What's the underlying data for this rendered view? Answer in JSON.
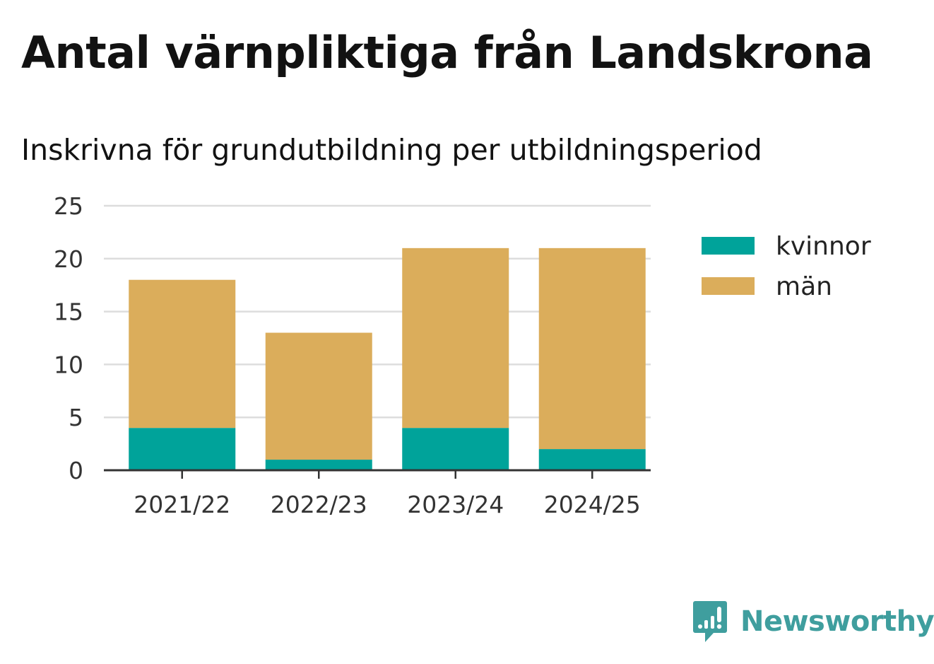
{
  "header": {
    "title": "Antal värnpliktiga från Landskrona",
    "subtitle": "Inskrivna för grundutbildning per utbildningsperiod"
  },
  "branding": {
    "logo_text": "Newsworthy"
  },
  "colors": {
    "kvinnor": "#00a39a",
    "man": "#dbad5b",
    "grid": "#dddddd",
    "axis": "#333333",
    "logo": "#3f9e9e"
  },
  "chart_data": {
    "type": "bar",
    "stacked": true,
    "categories": [
      "2021/22",
      "2022/23",
      "2023/24",
      "2024/25"
    ],
    "series": [
      {
        "name": "kvinnor",
        "values": [
          4,
          1,
          4,
          2
        ]
      },
      {
        "name": "män",
        "values": [
          14,
          12,
          17,
          19
        ]
      }
    ],
    "ylim": [
      0,
      25
    ],
    "yticks": [
      0,
      5,
      10,
      15,
      20,
      25
    ],
    "grid": true,
    "legend": "right"
  }
}
